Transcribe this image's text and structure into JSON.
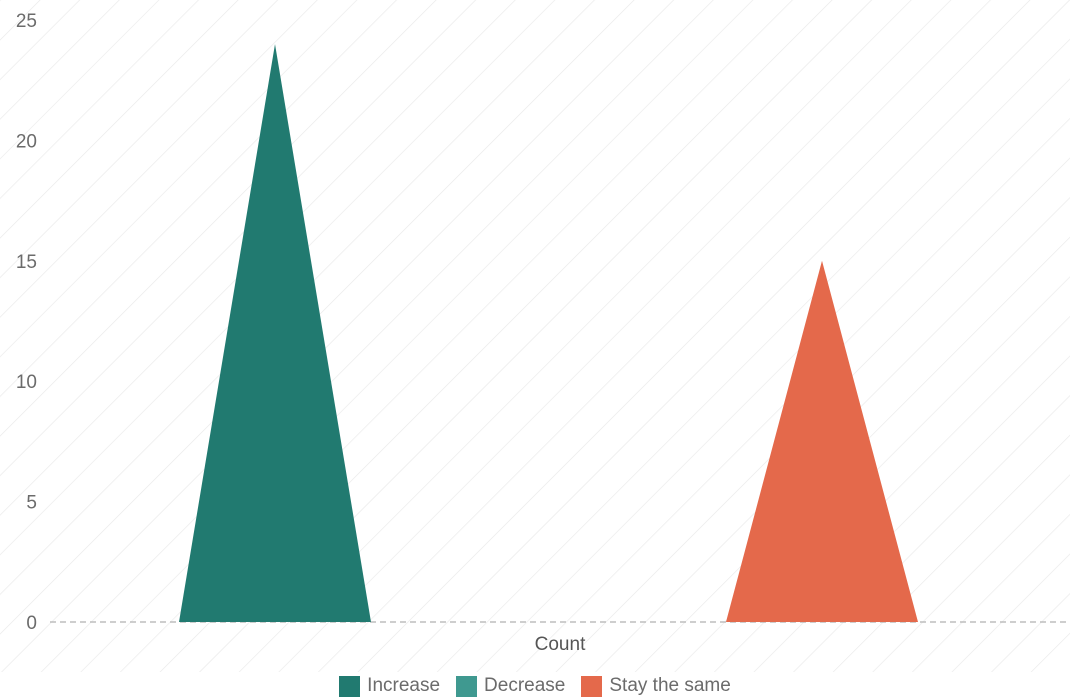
{
  "chart_data": {
    "type": "bar",
    "bar_shape": "triangle",
    "categories": [
      "Count"
    ],
    "series": [
      {
        "name": "Increase",
        "values": [
          24
        ],
        "color": "#217a70"
      },
      {
        "name": "Decrease",
        "values": [
          0
        ],
        "color": "#3f9990"
      },
      {
        "name": "Stay the same",
        "values": [
          15
        ],
        "color": "#e4694b"
      }
    ],
    "xlabel": "Count",
    "ylim": [
      0,
      25
    ],
    "yticks": [
      0,
      5,
      10,
      15,
      20,
      25
    ],
    "grid": false,
    "background": "diagonal stripes",
    "legend_position": "bottom"
  }
}
